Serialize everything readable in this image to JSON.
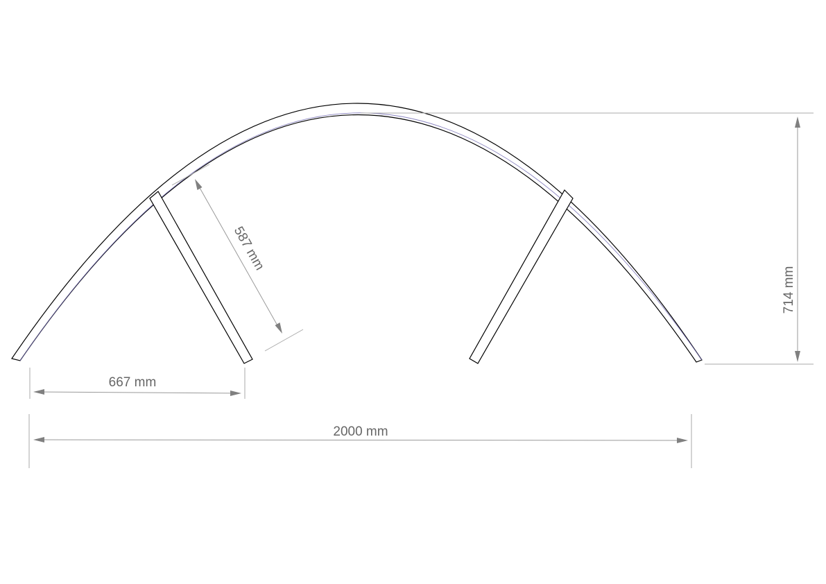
{
  "drawing": {
    "dimensions": {
      "span": "2000 mm",
      "leg_offset": "667 mm",
      "leg_length": "587 mm",
      "height": "714 mm"
    }
  },
  "colors": {
    "outline": "#000000",
    "arc_edge_accent": "#6b64b0",
    "dimension": "#808080",
    "dimension_text": "#666666",
    "background": "#ffffff"
  }
}
